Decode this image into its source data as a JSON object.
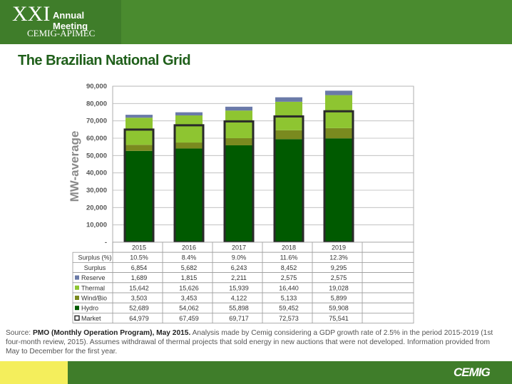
{
  "header": {
    "meeting_roman": "XXI",
    "meeting_label": "Annual Meeting",
    "organization": "CEMIG-APIMEC"
  },
  "slide_title": "The Brazilian National Grid",
  "source_note": {
    "lead": "Source: ",
    "source_bold": "PMO (Monthly Operation Program), May 2015.",
    "text": " Analysis made by Cemig considering a GDP growth rate of 2.5% in the period 2015-2019 (1st four-month review, 2015). Assumes withdrawal of thermal projects that sold energy in new auctions that were not developed. Information provided from May to December for the first year."
  },
  "footer": {
    "logo_text": "CEMIG"
  },
  "colors": {
    "hydro": "#005a00",
    "wind_bio": "#7a8a1f",
    "thermal": "#8ec531",
    "reserve": "#6a7aa8",
    "market_outline": "#2a2a2a",
    "header_green": "#4a8b2f",
    "footer_yellow": "#f4ee5c"
  },
  "chart_data": {
    "type": "bar",
    "stacked": true,
    "ylabel": "MW-average",
    "ylim": [
      0,
      90000
    ],
    "yticks": [
      "-",
      "10,000",
      "20,000",
      "30,000",
      "40,000",
      "50,000",
      "60,000",
      "70,000",
      "80,000",
      "90,000"
    ],
    "grid": true,
    "categories": [
      "2015",
      "2016",
      "2017",
      "2018",
      "2019"
    ],
    "series": [
      {
        "name": "Hydro",
        "key": "hydro",
        "values": [
          52689,
          54062,
          55898,
          59452,
          59908
        ],
        "labels": [
          "52,689",
          "54,062",
          "55,898",
          "59,452",
          "59,908"
        ]
      },
      {
        "name": "Wind/Bio",
        "key": "wind_bio",
        "values": [
          3503,
          3453,
          4122,
          5133,
          5899
        ],
        "labels": [
          "3,503",
          "3,453",
          "4,122",
          "5,133",
          "5,899"
        ]
      },
      {
        "name": "Thermal",
        "key": "thermal",
        "values": [
          15642,
          15626,
          15939,
          16440,
          19028
        ],
        "labels": [
          "15,642",
          "15,626",
          "15,939",
          "16,440",
          "19,028"
        ]
      },
      {
        "name": "Reserve",
        "key": "reserve",
        "values": [
          1689,
          1815,
          2211,
          2575,
          2575
        ],
        "labels": [
          "1,689",
          "1,815",
          "2,211",
          "2,575",
          "2,575"
        ]
      }
    ],
    "market": {
      "name": "Market",
      "values": [
        64979,
        67459,
        69717,
        72573,
        75541
      ],
      "labels": [
        "64,979",
        "67,459",
        "69,717",
        "72,573",
        "75,541"
      ]
    },
    "table_rows": [
      {
        "name": "Surplus (%)",
        "legend": false,
        "labels": [
          "10.5%",
          "8.4%",
          "9.0%",
          "11.6%",
          "12.3%"
        ]
      },
      {
        "name": "Surplus",
        "legend": false,
        "labels": [
          "6,854",
          "5,682",
          "6,243",
          "8,452",
          "9,295"
        ]
      },
      {
        "name": "Reserve",
        "legend": "reserve",
        "labels": [
          "1,689",
          "1,815",
          "2,211",
          "2,575",
          "2,575"
        ]
      },
      {
        "name": "Thermal",
        "legend": "thermal",
        "labels": [
          "15,642",
          "15,626",
          "15,939",
          "16,440",
          "19,028"
        ]
      },
      {
        "name": "Wind/Bio",
        "legend": "wind_bio",
        "labels": [
          "3,503",
          "3,453",
          "4,122",
          "5,133",
          "5,899"
        ]
      },
      {
        "name": "Hydro",
        "legend": "hydro",
        "labels": [
          "52,689",
          "54,062",
          "55,898",
          "59,452",
          "59,908"
        ]
      },
      {
        "name": "Market",
        "legend": "market",
        "labels": [
          "64,979",
          "67,459",
          "69,717",
          "72,573",
          "75,541"
        ]
      }
    ]
  }
}
